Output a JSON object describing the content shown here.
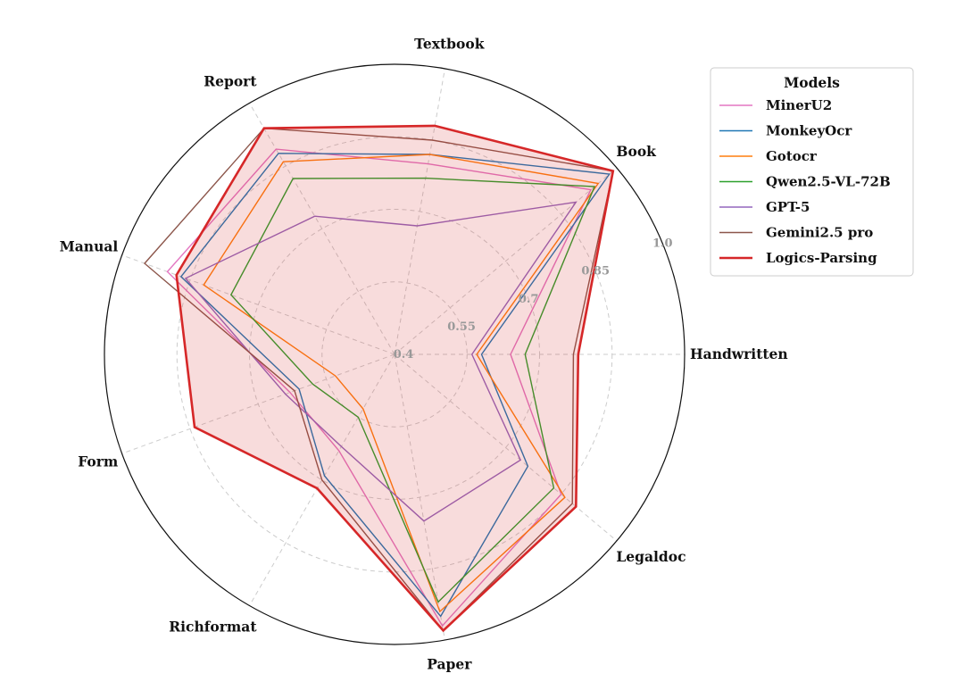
{
  "chart_data": {
    "type": "radar",
    "rlim": [
      0.4,
      1.0
    ],
    "rticks": [
      0.4,
      0.55,
      0.7,
      0.85,
      1.0
    ],
    "rtick_labels": [
      "0.4",
      "0.55",
      "0.7",
      "0.85",
      "1.0"
    ],
    "grid": true,
    "legend_position": "top-right",
    "legend_title": "Models",
    "categories": [
      "Handwritten",
      "Book",
      "Textbook",
      "Report",
      "Manual",
      "Form",
      "Richformat",
      "Paper",
      "Legaldoc"
    ],
    "series": [
      {
        "name": "MinerU2",
        "color": "#e377c2",
        "values": [
          0.64,
          0.93,
          0.8,
          0.89,
          0.9,
          0.63,
          0.63,
          0.97,
          0.85
        ],
        "fill": false
      },
      {
        "name": "MonkeyOcr",
        "color": "#1f77b4",
        "values": [
          0.58,
          0.98,
          0.82,
          0.88,
          0.87,
          0.61,
          0.69,
          0.95,
          0.76
        ],
        "fill": false
      },
      {
        "name": "Gotocr",
        "color": "#ff7f0e",
        "values": [
          0.57,
          0.95,
          0.82,
          0.86,
          0.82,
          0.53,
          0.53,
          0.94,
          0.86
        ],
        "fill": false
      },
      {
        "name": "Qwen2.5-VL-72B",
        "color": "#2ca02c",
        "values": [
          0.67,
          0.94,
          0.77,
          0.82,
          0.76,
          0.58,
          0.55,
          0.92,
          0.83
        ],
        "fill": false
      },
      {
        "name": "GPT-5",
        "color": "#9467bd",
        "values": [
          0.56,
          0.89,
          0.67,
          0.73,
          0.86,
          0.64,
          0.62,
          0.75,
          0.74
        ],
        "fill": false
      },
      {
        "name": "Gemini2.5 pro",
        "color": "#8c564b",
        "values": [
          0.77,
          0.99,
          0.85,
          0.94,
          0.95,
          0.62,
          0.7,
          0.98,
          0.88
        ],
        "fill": false
      },
      {
        "name": "Logics-Parsing",
        "color": "#d62728",
        "values": [
          0.78,
          0.99,
          0.88,
          0.94,
          0.88,
          0.84,
          0.72,
          0.98,
          0.89
        ],
        "fill": true
      }
    ]
  }
}
